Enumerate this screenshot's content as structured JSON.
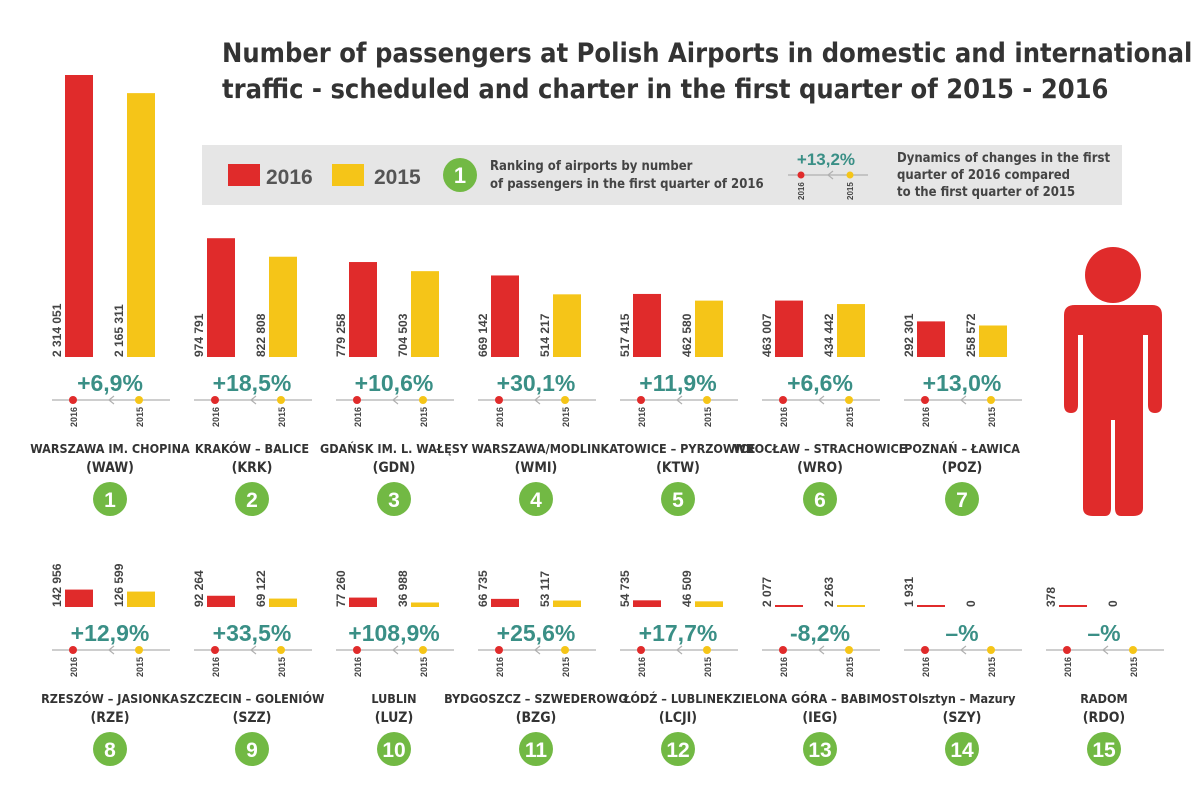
{
  "title": {
    "line1": "Number of passengers at Polish Airports in domestic and international",
    "line2": "traffic - scheduled and charter in the first quarter of  2015 - 2016"
  },
  "colors": {
    "y2016": "#e02b2b",
    "y2015": "#f5c518",
    "rank_badge": "#72b944",
    "percent": "#3a8f86",
    "legend_bg": "#e6e6e6",
    "person": "#e02b2b",
    "text": "#333333"
  },
  "legend": {
    "label_2016": "2016",
    "label_2015": "2015",
    "rank_example": "1",
    "rank_text_line1": "Ranking of airports by number",
    "rank_text_line2": "of passengers in the first quarter of 2016",
    "dyn_example": "+13,2%",
    "dyn_text_line1": "Dynamics of changes in the first",
    "dyn_text_line2": "quarter of 2016 compared",
    "dyn_text_line3": "to the first quarter of 2015",
    "tick_2016": "2016",
    "tick_2015": "2015"
  },
  "icons": {
    "person": "person-icon",
    "timeline_arrow": "arrow-left-icon"
  },
  "chart_data": {
    "type": "bar",
    "title": "Number of passengers at Polish Airports in domestic and international traffic - scheduled and charter in the first quarter of 2015 - 2016",
    "series_names": [
      "2016",
      "2015"
    ],
    "categories": [
      {
        "rank": "1",
        "name": "WARSZAWA IM. CHOPINA",
        "code": "(WAW)",
        "v2016": 2314051,
        "v2015": 2165311,
        "l2016": "2 314 051",
        "l2015": "2 165 311",
        "change": "+6,9%"
      },
      {
        "rank": "2",
        "name": "KRAKÓW – BALICE",
        "code": "(KRK)",
        "v2016": 974791,
        "v2015": 822808,
        "l2016": "974 791",
        "l2015": "822 808",
        "change": "+18,5%"
      },
      {
        "rank": "3",
        "name": "GDAŃSK IM. L. WAŁĘSY",
        "code": "(GDN)",
        "v2016": 779258,
        "v2015": 704503,
        "l2016": "779 258",
        "l2015": "704 503",
        "change": "+10,6%"
      },
      {
        "rank": "4",
        "name": "WARSZAWA/MODLIN",
        "code": "(WMI)",
        "v2016": 669142,
        "v2015": 514217,
        "l2016": "669 142",
        "l2015": "514 217",
        "change": "+30,1%"
      },
      {
        "rank": "5",
        "name": "KATOWICE – PYRZOWICE",
        "code": "(KTW)",
        "v2016": 517415,
        "v2015": 462580,
        "l2016": "517 415",
        "l2015": "462 580",
        "change": "+11,9%"
      },
      {
        "rank": "6",
        "name": "WROCŁAW – STRACHOWICE",
        "code": "(WRO)",
        "v2016": 463007,
        "v2015": 434442,
        "l2016": "463 007",
        "l2015": "434 442",
        "change": "+6,6%"
      },
      {
        "rank": "7",
        "name": "POZNAŃ – ŁAWICA",
        "code": "(POZ)",
        "v2016": 292301,
        "v2015": 258572,
        "l2016": "292 301",
        "l2015": "258 572",
        "change": "+13,0%"
      },
      {
        "rank": "8",
        "name": "RZESZÓW – JASIONKA",
        "code": "(RZE)",
        "v2016": 142956,
        "v2015": 126599,
        "l2016": "142 956",
        "l2015": "126 599",
        "change": "+12,9%"
      },
      {
        "rank": "9",
        "name": "SZCZECIN – GOLENIÓW",
        "code": "(SZZ)",
        "v2016": 92264,
        "v2015": 69122,
        "l2016": "92 264",
        "l2015": "69 122",
        "change": "+33,5%"
      },
      {
        "rank": "10",
        "name": "LUBLIN",
        "code": "(LUZ)",
        "v2016": 77260,
        "v2015": 36988,
        "l2016": "77 260",
        "l2015": "36 988",
        "change": "+108,9%"
      },
      {
        "rank": "11",
        "name": "BYDGOSZCZ – SZWEDEROWO",
        "code": "(BZG)",
        "v2016": 66735,
        "v2015": 53117,
        "l2016": "66 735",
        "l2015": "53 117",
        "change": "+25,6%"
      },
      {
        "rank": "12",
        "name": "ŁÓDŹ – LUBLINEK",
        "code": "(LCJI)",
        "v2016": 54735,
        "v2015": 46509,
        "l2016": "54 735",
        "l2015": "46 509",
        "change": "+17,7%"
      },
      {
        "rank": "13",
        "name": "ZIELONA GÓRA – BABIMOST",
        "code": "(IEG)",
        "v2016": 2077,
        "v2015": 2263,
        "l2016": "2 077",
        "l2015": "2 263",
        "change": "-8,2%"
      },
      {
        "rank": "14",
        "name": "Olsztyn – Mazury",
        "code": "(SZY)",
        "v2016": 1931,
        "v2015": 0,
        "l2016": "1 931",
        "l2015": "0",
        "change": "–%"
      },
      {
        "rank": "15",
        "name": "RADOM",
        "code": "(RDO)",
        "v2016": 378,
        "v2015": 0,
        "l2016": "378",
        "l2015": "0",
        "change": "–%"
      }
    ]
  }
}
